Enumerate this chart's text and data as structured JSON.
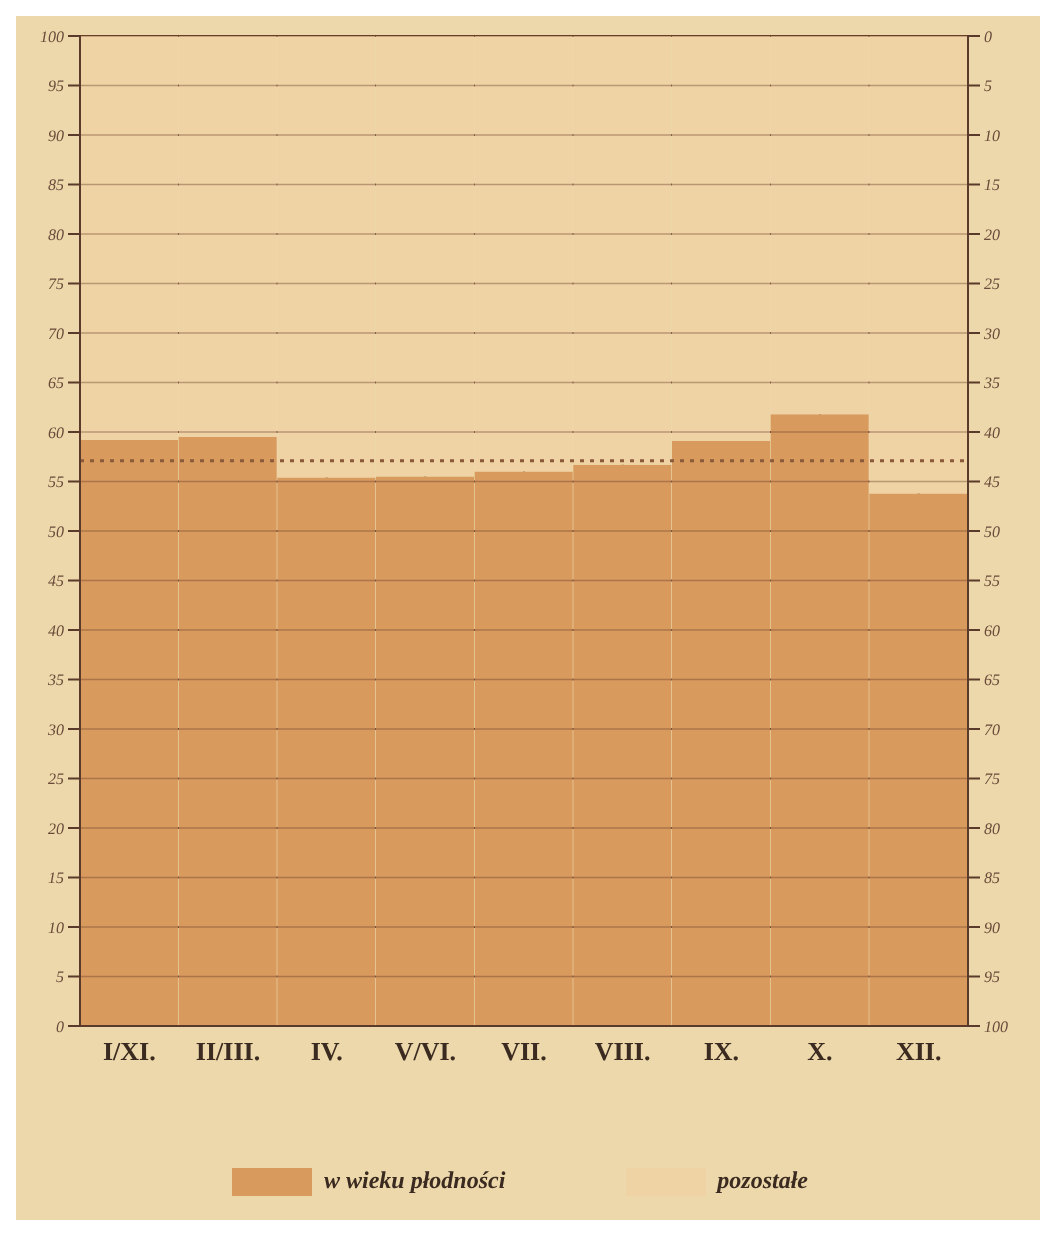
{
  "chart_data": {
    "type": "bar",
    "stacked": true,
    "categories": [
      "I/XI.",
      "II/III.",
      "IV.",
      "V/VI.",
      "VII.",
      "VIII.",
      "IX.",
      "X.",
      "XII."
    ],
    "series": [
      {
        "name": "w wieku płodności",
        "color": "#d99a5e",
        "values": [
          59.2,
          59.5,
          55.4,
          55.5,
          56,
          56.7,
          59.1,
          61.8,
          53.8
        ]
      },
      {
        "name": "pozostałe",
        "color": "#efd3a4",
        "values": [
          40.8,
          40.5,
          44.6,
          44.5,
          44,
          43.3,
          40.9,
          38.2,
          46.2
        ]
      }
    ],
    "ylim": [
      0,
      100
    ],
    "yticks": [
      0,
      5,
      10,
      15,
      20,
      25,
      30,
      35,
      40,
      45,
      50,
      55,
      60,
      65,
      70,
      75,
      80,
      85,
      90,
      95,
      100
    ],
    "y2lim": [
      100,
      0
    ],
    "y2ticks": [
      0,
      5,
      10,
      15,
      20,
      25,
      30,
      35,
      40,
      45,
      50,
      55,
      60,
      65,
      70,
      75,
      80,
      85,
      90,
      95,
      100
    ],
    "ref_lines": [
      {
        "axis": "y",
        "value": 57.1,
        "color": "#8a5a3a",
        "line_style": "dotted"
      }
    ],
    "grid": true,
    "legend": "bottom"
  }
}
